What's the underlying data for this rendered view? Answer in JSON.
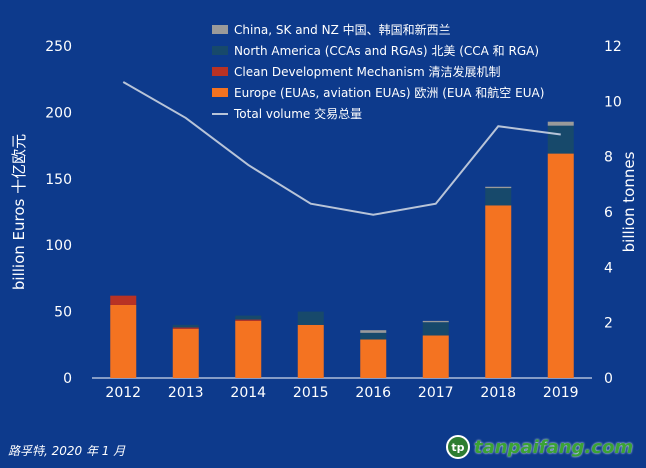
{
  "chart_data": {
    "type": "bar",
    "categories": [
      "2012",
      "2013",
      "2014",
      "2015",
      "2016",
      "2017",
      "2018",
      "2019"
    ],
    "ylabel": "billion Euros 十亿欧元",
    "ylabel2": "billion tonnes",
    "ylim": [
      0,
      250
    ],
    "y2lim": [
      0,
      12
    ],
    "yticks": [
      0,
      50,
      100,
      150,
      200,
      250
    ],
    "y2ticks": [
      0,
      2,
      4,
      6,
      8,
      10,
      12
    ],
    "legend_position": "top-center",
    "series": [
      {
        "name": "Europe (EUAs, aviation EUAs) 欧洲 (EUA 和航空 EUA)",
        "color": "#f47321",
        "values": [
          55,
          37,
          43,
          40,
          29,
          32,
          130,
          169
        ]
      },
      {
        "name": "Clean Development Mechanism 清洁发展机制",
        "color": "#b83224",
        "values": [
          7,
          1,
          1,
          0,
          0,
          0,
          0,
          0
        ]
      },
      {
        "name": "North America (CCAs and RGAs) 北美 (CCA 和 RGA)",
        "color": "#17496b",
        "values": [
          0,
          2,
          3,
          10,
          5,
          10,
          13,
          21
        ]
      },
      {
        "name": "China, SK and NZ  中国、韩国和新西兰",
        "color": "#9a9a9a",
        "values": [
          0,
          0,
          0,
          0,
          2,
          1,
          1,
          3
        ]
      }
    ],
    "line": {
      "name": "Total volume 交易总量",
      "color": "#b8c4d8",
      "axis": "right",
      "values": [
        10.7,
        9.4,
        7.7,
        6.3,
        5.9,
        6.3,
        9.1,
        8.8
      ]
    },
    "legend_order": [
      3,
      2,
      1,
      0
    ]
  },
  "footer": {
    "source": "路孚特, 2020 年 1 月",
    "logo_text": "tanpaifang.com",
    "logo_mark": "tp"
  }
}
